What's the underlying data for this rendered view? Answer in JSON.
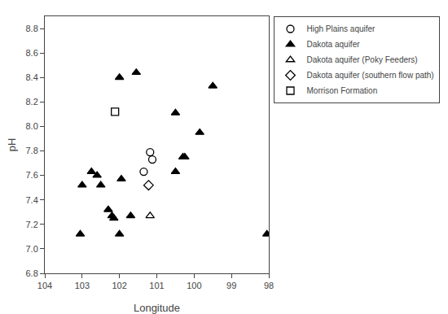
{
  "chart_data": {
    "type": "scatter",
    "xlabel": "Longitude",
    "ylabel": "pH",
    "xlim": [
      104,
      98
    ],
    "ylim": [
      6.8,
      8.9
    ],
    "xticks": [
      104,
      103,
      102,
      101,
      100,
      99,
      98
    ],
    "yticks": [
      6.8,
      {
        "value": 7.0,
        "label": "7.0"
      },
      7.2,
      7.4,
      7.6,
      7.8,
      {
        "value": 8.0,
        "label": "8.0"
      },
      8.2,
      8.4,
      8.6,
      8.8
    ],
    "grid": false,
    "legend": "upper right",
    "series": [
      {
        "name": "High Plains aquifer",
        "color": "#000000",
        "marker": "circle-open",
        "x": [
          101.35,
          101.18,
          101.12
        ],
        "values": [
          7.63,
          7.79,
          7.73
        ]
      },
      {
        "name": "Dakota aquifer",
        "color": "#000000",
        "marker": "triangle-up",
        "x": [
          103.0,
          103.05,
          102.75,
          102.6,
          102.5,
          102.3,
          102.2,
          102.15,
          102.0,
          102.0,
          101.95,
          101.7,
          101.55,
          100.5,
          100.5,
          100.3,
          100.25,
          99.85,
          99.5,
          98.05
        ],
        "values": [
          7.52,
          7.12,
          7.63,
          7.6,
          7.52,
          7.32,
          7.27,
          7.25,
          8.4,
          7.12,
          7.57,
          7.27,
          8.44,
          8.11,
          7.63,
          7.75,
          7.75,
          7.95,
          8.33,
          7.12
        ]
      },
      {
        "name": "Dakota aquifer (Poky Feeders)",
        "color": "#000000",
        "marker": "triangle-up-open",
        "x": [
          101.18
        ],
        "values": [
          7.27
        ]
      },
      {
        "name": "Dakota aquifer (southern flow path)",
        "color": "#000000",
        "marker": "diamond-open",
        "x": [
          101.22
        ],
        "values": [
          7.52
        ]
      },
      {
        "name": "Morrison Formation",
        "color": "#000000",
        "marker": "square-open",
        "x": [
          102.12
        ],
        "values": [
          8.12
        ]
      }
    ]
  }
}
